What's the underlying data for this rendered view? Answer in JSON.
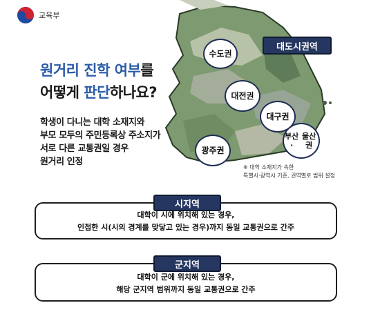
{
  "header": {
    "ministry": "교육부",
    "logo_icon": "korea-taegeuk-emblem"
  },
  "headline": {
    "line1_a": "원거리 진학 여부",
    "line1_b": "를",
    "line2_a": "어떻게 ",
    "line2_b": "판단",
    "line2_c": "하나요?"
  },
  "description": {
    "line1": "학생이 다니는 대학 소재지와",
    "line2": "부모 모두의 주민등록상 주소지가",
    "line3": "서로 다른 교통권일 경우",
    "line4": "원거리 인정"
  },
  "map": {
    "metro_label": "대도시권역",
    "regions": [
      "수도권",
      "대전권",
      "대구권",
      "광주권",
      "부산·울산권"
    ],
    "region5_line1": "부산·",
    "region5_line2": "울산권"
  },
  "note": {
    "line1": "※ 대학 소재지가 속한",
    "line2": "특별시·광역시 기준, 권역별로 범위 설정"
  },
  "city_area": {
    "title": "시지역",
    "line1": "대학이 시에 위치해 있는 경우,",
    "line2": "인접한 시(시의 경계를 맞닿고 있는 경우)까지 동일 교통권으로 간주"
  },
  "county_area": {
    "title": "군지역",
    "line1": "대학이 군에 위치해 있는 경우,",
    "line2": "해당 군지역 범위까지 동일 교통권으로 간주"
  },
  "colors": {
    "navy": "#253760",
    "highlight": "#2b5ba8",
    "map_green": "#7d9a6e",
    "map_gray": "#9aa6a0"
  }
}
